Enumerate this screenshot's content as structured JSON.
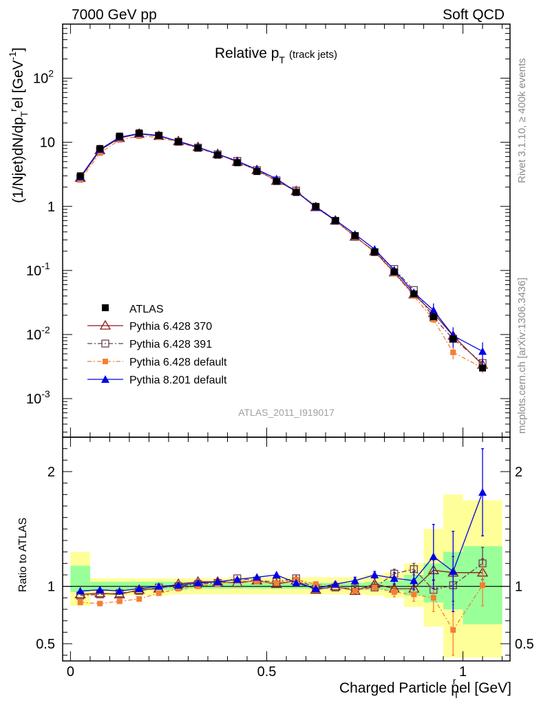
{
  "header": {
    "left": "7000 GeV pp",
    "right": "Soft QCD"
  },
  "sidebar": {
    "rivet": "Rivet 3.1.10, ≥ 400k events",
    "source": "mcplots.cern.ch [arXiv:1306.3436]"
  },
  "watermark": "ATLAS_2011_I919017",
  "chart_data": {
    "type": "scatter",
    "title": "Relative p_T (track jets)",
    "title_main": "Relative p",
    "title_sub": "T",
    "title_paren": "(track jets)",
    "xlabel": "Charged Particle p_T^rel [GeV]",
    "xlabel_main": "Charged Particle p",
    "xlabel_sup": "r",
    "xlabel_sub": "T",
    "xlabel_tail": "el [GeV]",
    "ylabel": "(1/Njet)dN/dp_T^rel [GeV^-1]",
    "ylabel_parts": [
      "(1/Njet)dN/dp",
      "T",
      "r",
      "el [GeV",
      "-1",
      "]"
    ],
    "ratio_ylabel": "Ratio to ATLAS",
    "xlim": [
      -0.02,
      1.12
    ],
    "ylim": [
      0.00025,
      700
    ],
    "y_scale": "log",
    "ratio_ylim": [
      0.35,
      2.3
    ],
    "x_ticks": [
      {
        "v": 0,
        "label": "0"
      },
      {
        "v": 0.5,
        "label": "0.5"
      },
      {
        "v": 1,
        "label": "1"
      }
    ],
    "y_ticks": [
      {
        "v": 0.001,
        "base": "10",
        "exp": "-3"
      },
      {
        "v": 0.01,
        "base": "10",
        "exp": "-2"
      },
      {
        "v": 0.1,
        "base": "10",
        "exp": "-1"
      },
      {
        "v": 1,
        "base": "1",
        "exp": ""
      },
      {
        "v": 10,
        "base": "10",
        "exp": ""
      },
      {
        "v": 100,
        "base": "10",
        "exp": "2"
      }
    ],
    "ratio_ticks": [
      {
        "v": 0.5,
        "label": "0.5"
      },
      {
        "v": 1,
        "label": "1"
      },
      {
        "v": 2,
        "label": "2"
      }
    ],
    "legend_position": "lower-left",
    "x": [
      0.025,
      0.075,
      0.125,
      0.175,
      0.225,
      0.275,
      0.325,
      0.375,
      0.425,
      0.475,
      0.525,
      0.575,
      0.625,
      0.675,
      0.725,
      0.775,
      0.825,
      0.875,
      0.925,
      0.975,
      1.05
    ],
    "x_edges": [
      0,
      0.05,
      0.1,
      0.15,
      0.2,
      0.25,
      0.3,
      0.35,
      0.4,
      0.45,
      0.5,
      0.55,
      0.6,
      0.65,
      0.7,
      0.75,
      0.8,
      0.85,
      0.9,
      0.95,
      1.0,
      1.1
    ],
    "data": {
      "name": "ATLAS",
      "color": "#000000",
      "values": [
        3.0,
        8.0,
        12.5,
        14.0,
        12.8,
        10.2,
        8.1,
        6.3,
        4.8,
        3.5,
        2.45,
        1.65,
        1.0,
        0.6,
        0.35,
        0.195,
        0.095,
        0.043,
        0.019,
        0.0085,
        0.003
      ],
      "band_yellow_lo": [
        0.83,
        0.92,
        0.92,
        0.92,
        0.92,
        0.93,
        0.93,
        0.93,
        0.93,
        0.93,
        0.93,
        0.93,
        0.93,
        0.93,
        0.93,
        0.92,
        0.9,
        0.82,
        0.65,
        0.38,
        0.38
      ],
      "band_yellow_hi": [
        1.3,
        1.07,
        1.07,
        1.07,
        1.07,
        1.07,
        1.07,
        1.07,
        1.08,
        1.08,
        1.08,
        1.08,
        1.08,
        1.08,
        1.08,
        1.1,
        1.12,
        1.2,
        1.5,
        1.8,
        1.75
      ],
      "band_green_lo": [
        0.95,
        0.97,
        0.97,
        0.97,
        0.97,
        0.97,
        0.98,
        0.98,
        0.98,
        0.98,
        0.98,
        0.98,
        0.98,
        0.98,
        0.98,
        0.97,
        0.96,
        0.92,
        0.86,
        0.8,
        0.67
      ],
      "band_green_hi": [
        1.18,
        1.04,
        1.04,
        1.04,
        1.04,
        1.04,
        1.03,
        1.03,
        1.03,
        1.03,
        1.03,
        1.03,
        1.03,
        1.03,
        1.03,
        1.04,
        1.05,
        1.1,
        1.2,
        1.3,
        1.35
      ]
    },
    "series": [
      {
        "name": "Pythia 6.428 370",
        "color": "#8b1a1a",
        "dash": "",
        "marker": "triangle-open",
        "ratio": [
          0.93,
          0.94,
          0.93,
          0.97,
          0.98,
          1.02,
          1.04,
          1.04,
          1.03,
          1.05,
          1.02,
          1.05,
          0.97,
          1.0,
          0.96,
          1.02,
          0.98,
          0.98,
          1.14,
          1.12,
          1.12
        ],
        "ratio_err": [
          0.005,
          0.005,
          0.005,
          0.005,
          0.005,
          0.005,
          0.005,
          0.005,
          0.005,
          0.005,
          0.005,
          0.005,
          0.01,
          0.01,
          0.02,
          0.02,
          0.04,
          0.05,
          0.09,
          0.14,
          0.12
        ]
      },
      {
        "name": "Pythia 6.428 391",
        "color": "#6b3f52",
        "dash": "7,3,2,3",
        "marker": "square-open",
        "ratio": [
          0.92,
          0.93,
          0.94,
          0.96,
          0.99,
          1.0,
          1.02,
          1.03,
          1.07,
          1.05,
          1.04,
          1.07,
          0.98,
          0.99,
          0.98,
          0.99,
          1.11,
          1.15,
          0.97,
          1.01,
          1.2
        ],
        "ratio_err": [
          0.005,
          0.005,
          0.005,
          0.005,
          0.005,
          0.005,
          0.005,
          0.005,
          0.005,
          0.005,
          0.005,
          0.005,
          0.01,
          0.01,
          0.02,
          0.02,
          0.04,
          0.05,
          0.09,
          0.14,
          0.14
        ]
      },
      {
        "name": "Pythia 6.428 default",
        "color": "#f57e32",
        "dash": "6,3,2,3",
        "marker": "square-filled",
        "ratio": [
          0.86,
          0.85,
          0.87,
          0.89,
          0.94,
          0.98,
          1.0,
          1.02,
          1.05,
          1.04,
          1.03,
          1.06,
          1.02,
          1.01,
          0.96,
          0.99,
          0.95,
          0.93,
          0.9,
          0.62,
          1.01
        ],
        "ratio_err": [
          0.005,
          0.005,
          0.005,
          0.005,
          0.005,
          0.005,
          0.005,
          0.005,
          0.005,
          0.005,
          0.005,
          0.005,
          0.01,
          0.01,
          0.02,
          0.02,
          0.04,
          0.06,
          0.12,
          0.22,
          0.18
        ]
      },
      {
        "name": "Pythia 8.201 default",
        "color": "#0000e6",
        "dash": "",
        "marker": "triangle-filled",
        "ratio": [
          0.96,
          0.97,
          0.96,
          0.98,
          1.0,
          1.01,
          1.03,
          1.04,
          1.06,
          1.08,
          1.1,
          1.03,
          0.98,
          1.02,
          1.05,
          1.1,
          1.07,
          1.05,
          1.26,
          1.13,
          1.82
        ],
        "ratio_err": [
          0.005,
          0.005,
          0.005,
          0.005,
          0.005,
          0.005,
          0.005,
          0.005,
          0.005,
          0.005,
          0.005,
          0.005,
          0.01,
          0.02,
          0.03,
          0.03,
          0.05,
          0.08,
          0.28,
          0.35,
          0.38
        ]
      }
    ]
  }
}
